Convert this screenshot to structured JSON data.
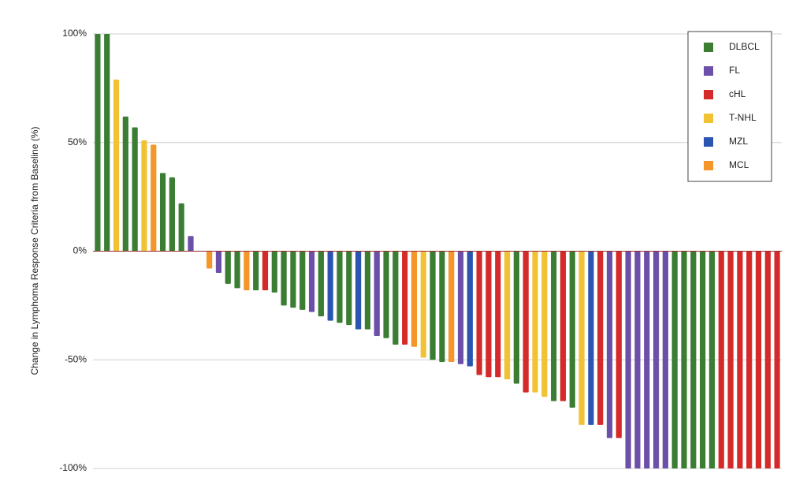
{
  "chart_data": {
    "type": "bar",
    "y_label": "Change in Lymphoma Response Criteria from Baseline (%)",
    "ylim": [
      -100,
      100
    ],
    "yticks": [
      {
        "value": 100,
        "label": "100%"
      },
      {
        "value": 50,
        "label": "50%"
      },
      {
        "value": 0,
        "label": "0%"
      },
      {
        "value": -50,
        "label": "-50%"
      },
      {
        "value": -100,
        "label": "-100%"
      }
    ],
    "grid": true,
    "legend": "top-right",
    "series": [
      {
        "name": "DLBCL",
        "color": "#3a7d33",
        "values": [
          100,
          100,
          null,
          62,
          57,
          null,
          null,
          36,
          34,
          22,
          null,
          0,
          null,
          null,
          -15,
          -17,
          null,
          -18,
          null,
          -19,
          -25,
          -26,
          -27,
          null,
          -30,
          null,
          -33,
          -34,
          null,
          -36,
          null,
          -40,
          -43,
          null,
          null,
          null,
          -50,
          -51,
          null,
          null,
          null,
          null,
          null,
          null,
          null,
          -61,
          null,
          null,
          null,
          -69,
          null,
          -72,
          null,
          null,
          null,
          null,
          null,
          null,
          null,
          null,
          null,
          null,
          -100,
          -100,
          -100,
          -100,
          -100,
          null,
          null,
          null,
          null,
          null,
          null,
          null
        ]
      },
      {
        "name": "FL",
        "color": "#6b4fa8",
        "values": [
          null,
          null,
          null,
          null,
          null,
          null,
          null,
          null,
          null,
          null,
          7,
          null,
          null,
          -10,
          null,
          null,
          null,
          null,
          null,
          null,
          null,
          null,
          null,
          -28,
          null,
          null,
          null,
          null,
          null,
          null,
          -39,
          null,
          null,
          null,
          null,
          null,
          null,
          null,
          null,
          -52,
          null,
          null,
          null,
          null,
          null,
          null,
          null,
          null,
          null,
          null,
          null,
          null,
          null,
          null,
          null,
          -86,
          null,
          -100,
          -100,
          -100,
          -100,
          -100,
          null,
          null,
          null,
          null,
          null,
          null,
          null,
          null,
          null,
          null,
          null,
          null
        ]
      },
      {
        "name": "cHL",
        "color": "#d42a2a",
        "values": [
          null,
          null,
          null,
          null,
          null,
          null,
          null,
          null,
          null,
          null,
          null,
          null,
          null,
          null,
          null,
          null,
          null,
          null,
          -18,
          null,
          null,
          null,
          null,
          null,
          null,
          null,
          null,
          null,
          null,
          null,
          null,
          null,
          null,
          -43,
          null,
          null,
          null,
          null,
          null,
          null,
          null,
          -57,
          -58,
          -58,
          null,
          null,
          -65,
          null,
          null,
          null,
          -69,
          null,
          null,
          null,
          -80,
          null,
          -86,
          null,
          null,
          null,
          null,
          null,
          null,
          null,
          null,
          null,
          null,
          -100,
          -100,
          -100,
          -100,
          -100,
          -100,
          -100
        ]
      },
      {
        "name": "T-NHL",
        "color": "#f0c234",
        "values": [
          null,
          null,
          79,
          null,
          null,
          51,
          null,
          null,
          null,
          null,
          null,
          null,
          null,
          null,
          null,
          null,
          null,
          null,
          null,
          null,
          null,
          null,
          null,
          null,
          null,
          null,
          null,
          null,
          null,
          null,
          null,
          null,
          null,
          null,
          null,
          -49,
          null,
          null,
          null,
          null,
          null,
          null,
          null,
          null,
          -59,
          null,
          null,
          -65,
          -67,
          null,
          null,
          null,
          -80,
          null,
          null,
          null,
          null,
          null,
          null,
          null,
          null,
          null,
          null,
          null,
          null,
          null,
          null,
          null,
          null,
          null,
          null,
          null,
          null,
          null
        ]
      },
      {
        "name": "MZL",
        "color": "#2b55b0",
        "values": [
          null,
          null,
          null,
          null,
          null,
          null,
          null,
          null,
          null,
          null,
          null,
          null,
          null,
          null,
          null,
          null,
          null,
          null,
          null,
          null,
          null,
          null,
          null,
          null,
          null,
          -32,
          null,
          null,
          -36,
          null,
          null,
          null,
          null,
          null,
          null,
          null,
          null,
          null,
          null,
          null,
          -53,
          null,
          null,
          null,
          null,
          null,
          null,
          null,
          null,
          null,
          null,
          null,
          null,
          -80,
          null,
          null,
          null,
          null,
          null,
          null,
          null,
          null,
          null,
          null,
          null,
          null,
          null,
          null,
          null,
          null,
          null,
          null,
          null,
          null
        ]
      },
      {
        "name": "MCL",
        "color": "#f5962a",
        "values": [
          null,
          null,
          null,
          null,
          null,
          null,
          49,
          null,
          null,
          null,
          null,
          null,
          -8,
          null,
          null,
          null,
          -18,
          null,
          null,
          null,
          null,
          null,
          null,
          null,
          null,
          null,
          null,
          null,
          null,
          null,
          null,
          null,
          null,
          null,
          -44,
          null,
          null,
          null,
          -51,
          null,
          null,
          null,
          null,
          null,
          null,
          null,
          null,
          null,
          null,
          null,
          null,
          null,
          null,
          null,
          null,
          null,
          null,
          null,
          null,
          null,
          null,
          null,
          null,
          null,
          null,
          null,
          null,
          null,
          null,
          null,
          null,
          null,
          null,
          null
        ]
      }
    ]
  }
}
